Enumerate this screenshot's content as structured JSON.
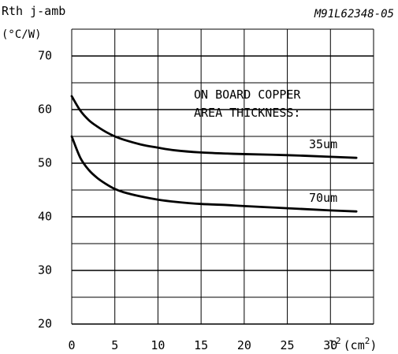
{
  "chart_data": {
    "type": "line",
    "doc_code": "M91L62348-05",
    "ylabel": "Rth j-amb",
    "ylabel_unit": "(°C/W)",
    "xlabel_unit_text": "(cm",
    "xlabel_unit_sup": "2",
    "xlabel_unit_close": ")",
    "xlabel_var": "l",
    "xlabel_var_sup": "2",
    "xlim": [
      0,
      35
    ],
    "ylim": [
      20,
      75
    ],
    "x_ticks": [
      "0",
      "5",
      "10",
      "15",
      "20",
      "25",
      "30"
    ],
    "y_ticks": [
      "20",
      "30",
      "40",
      "50",
      "60",
      "70"
    ],
    "grid": true,
    "annotation_line1": "ON BOARD COPPER",
    "annotation_line2": "AREA THICKNESS:",
    "series": [
      {
        "name": "35um",
        "x": [
          0,
          1,
          2,
          3,
          4,
          5,
          6,
          8,
          10,
          12,
          15,
          18,
          20,
          25,
          30,
          33
        ],
        "y": [
          62.5,
          59.8,
          58.0,
          56.8,
          55.8,
          55.0,
          54.4,
          53.5,
          52.9,
          52.4,
          52.0,
          51.8,
          51.7,
          51.5,
          51.2,
          51.0
        ]
      },
      {
        "name": "70um",
        "x": [
          0,
          1,
          2,
          3,
          4,
          5,
          6,
          8,
          10,
          12,
          15,
          18,
          20,
          25,
          30,
          33
        ],
        "y": [
          55.0,
          51.0,
          48.7,
          47.2,
          46.1,
          45.2,
          44.6,
          43.8,
          43.2,
          42.8,
          42.4,
          42.2,
          42.0,
          41.6,
          41.2,
          41.0
        ]
      }
    ]
  }
}
